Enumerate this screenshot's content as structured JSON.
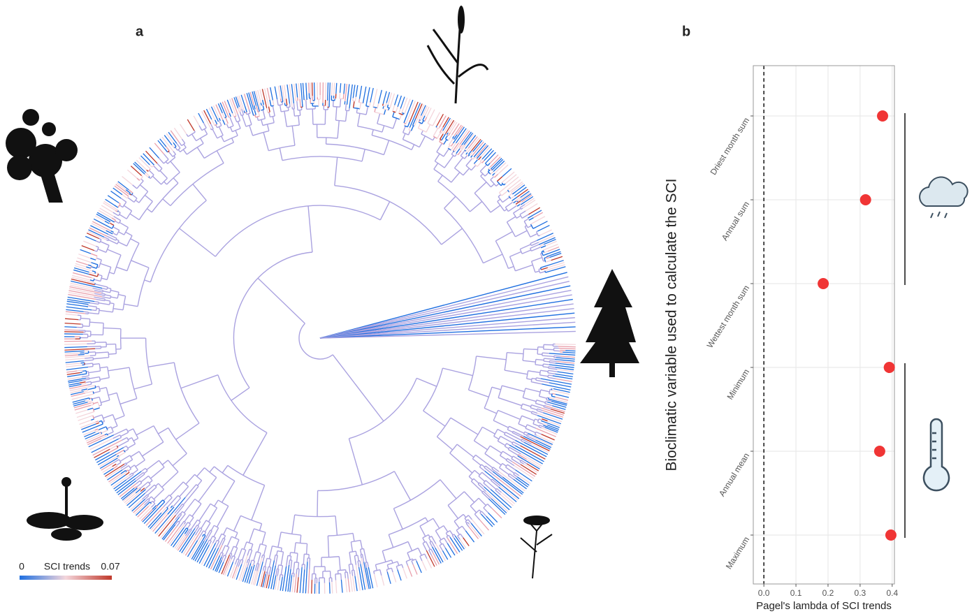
{
  "chart_data": [
    {
      "type": "tree",
      "panel_label": "a",
      "colorbar": {
        "title": "SCI trends",
        "lim": [
          0,
          0.07
        ],
        "colors": [
          "#1f6fe0",
          "#f4d6dc",
          "#c0392b"
        ]
      }
    },
    {
      "type": "scatter",
      "panel_label": "b",
      "ylabel": "Bioclimatic variable used to calculate the SCI",
      "xlabel": "Pagel's lambda of SCI trends",
      "categories": [
        "Driest month sum",
        "Annual sum",
        "Wettest month sum",
        "Minimum",
        "Annual mean",
        "Maximum"
      ],
      "values": [
        0.37,
        0.317,
        0.185,
        0.391,
        0.361,
        0.396
      ],
      "color": "#f03535",
      "xlim": [
        -0.033,
        0.407
      ],
      "xticks": [
        {
          "value": 0,
          "label": "0.0"
        },
        0.1,
        0.2,
        0.3,
        0.4
      ],
      "vline": 0,
      "grid": true
    }
  ]
}
